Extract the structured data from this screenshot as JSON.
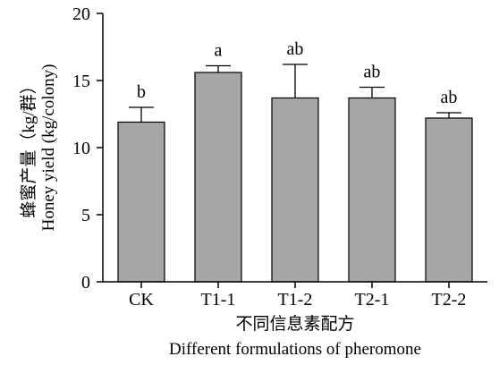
{
  "chart_data": {
    "type": "bar",
    "categories": [
      "CK",
      "T1-1",
      "T1-2",
      "T2-1",
      "T2-2"
    ],
    "values": [
      11.9,
      15.6,
      13.7,
      13.7,
      12.2
    ],
    "error_upper": [
      13.0,
      16.1,
      16.2,
      14.5,
      12.6
    ],
    "significance_labels": [
      "b",
      "a",
      "ab",
      "ab",
      "ab"
    ],
    "ylim": [
      0,
      20
    ],
    "yticks": [
      0,
      5,
      10,
      15,
      20
    ],
    "ylabel_zh": "蜂蜜产量（kg/群）",
    "ylabel_en": "Honey yield (kg/colony)",
    "xlabel_zh": "不同信息素配方",
    "xlabel_en": "Different formulations of pheromone",
    "bar_color": "#a6a6a6",
    "grid": false
  }
}
